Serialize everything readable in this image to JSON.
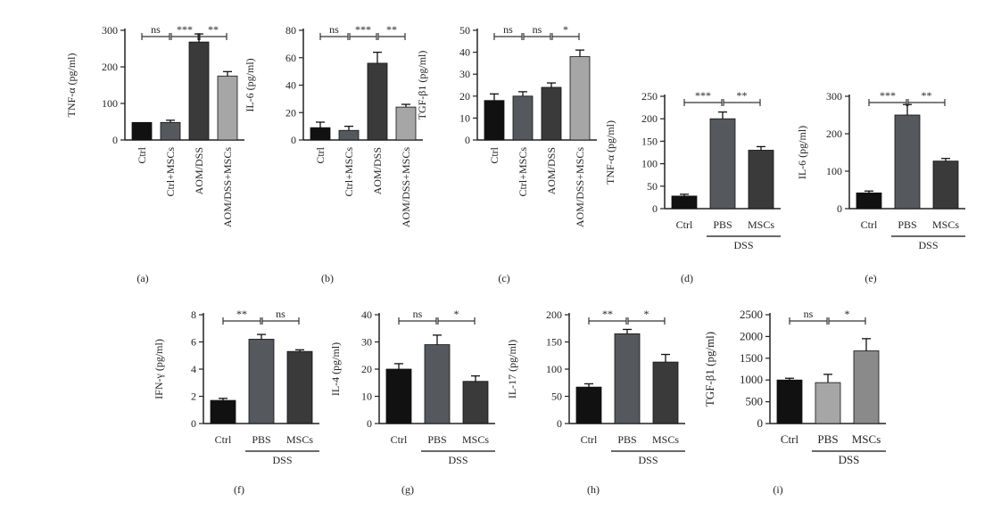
{
  "colors": {
    "black": "#111111",
    "dark": "#3a3a3a",
    "mid": "#55585c",
    "light": "#a6a6a6",
    "axis": "#222222"
  },
  "chart_data": [
    {
      "id": "a",
      "type": "bar",
      "panel_label": "(a)",
      "ylabel": "TNF-α (pg/ml)",
      "ylim": [
        0,
        300
      ],
      "yticks": [
        0,
        100,
        200,
        300
      ],
      "categories": [
        "Ctrl",
        "Ctrl+MSCs",
        "AOM/DSS",
        "AOM/DSS+MSCs"
      ],
      "values": [
        48,
        48,
        268,
        175
      ],
      "errors": [
        0,
        6,
        22,
        12
      ],
      "colors": [
        "#111111",
        "#55585c",
        "#3a3a3a",
        "#a6a6a6"
      ],
      "significance": [
        {
          "from": 0,
          "to": 1,
          "label": "ns"
        },
        {
          "from": 1,
          "to": 2,
          "label": "***"
        },
        {
          "from": 2,
          "to": 3,
          "label": "**"
        }
      ],
      "group": null
    },
    {
      "id": "b",
      "type": "bar",
      "panel_label": "(b)",
      "ylabel": "IL-6 (pg/ml)",
      "ylim": [
        0,
        80
      ],
      "yticks": [
        0,
        20,
        40,
        60,
        80
      ],
      "categories": [
        "Ctrl",
        "Ctrl+MSCs",
        "AOM/DSS",
        "AOM/DSS+MSCs"
      ],
      "values": [
        9,
        7,
        56,
        24
      ],
      "errors": [
        4,
        3,
        8,
        2
      ],
      "colors": [
        "#111111",
        "#55585c",
        "#3a3a3a",
        "#a6a6a6"
      ],
      "significance": [
        {
          "from": 0,
          "to": 1,
          "label": "ns"
        },
        {
          "from": 1,
          "to": 2,
          "label": "***"
        },
        {
          "from": 2,
          "to": 3,
          "label": "**"
        }
      ],
      "group": null
    },
    {
      "id": "c",
      "type": "bar",
      "panel_label": "(c)",
      "ylabel": "TGF-β1 (pg/ml)",
      "ylim": [
        0,
        50
      ],
      "yticks": [
        0,
        10,
        20,
        30,
        40,
        50
      ],
      "categories": [
        "Ctrl",
        "Ctrl+MSCs",
        "AOM/DSS",
        "AOM/DSS+MSCs"
      ],
      "values": [
        18,
        20,
        24,
        38
      ],
      "errors": [
        3,
        2,
        2,
        3
      ],
      "colors": [
        "#111111",
        "#55585c",
        "#3a3a3a",
        "#a6a6a6"
      ],
      "significance": [
        {
          "from": 0,
          "to": 1,
          "label": "ns"
        },
        {
          "from": 1,
          "to": 2,
          "label": "ns"
        },
        {
          "from": 2,
          "to": 3,
          "label": "*"
        }
      ],
      "group": null
    },
    {
      "id": "d",
      "type": "bar",
      "panel_label": "(d)",
      "ylabel": "TNF-α (pg/ml)",
      "ylim": [
        0,
        250
      ],
      "yticks": [
        0,
        50,
        100,
        150,
        200,
        250
      ],
      "categories": [
        "Ctrl",
        "PBS",
        "MSCs"
      ],
      "values": [
        28,
        200,
        130
      ],
      "errors": [
        4,
        15,
        8
      ],
      "colors": [
        "#111111",
        "#55585c",
        "#3a3a3a"
      ],
      "significance": [
        {
          "from": 0,
          "to": 1,
          "label": "***"
        },
        {
          "from": 1,
          "to": 2,
          "label": "**"
        }
      ],
      "group": {
        "label": "DSS",
        "from": 1,
        "to": 2
      }
    },
    {
      "id": "e",
      "type": "bar",
      "panel_label": "(e)",
      "ylabel": "IL-6 (pg/ml)",
      "ylim": [
        0,
        300
      ],
      "yticks": [
        0,
        100,
        200,
        300
      ],
      "categories": [
        "Ctrl",
        "PBS",
        "MSCs"
      ],
      "values": [
        42,
        250,
        127
      ],
      "errors": [
        5,
        28,
        7
      ],
      "colors": [
        "#111111",
        "#55585c",
        "#3a3a3a"
      ],
      "significance": [
        {
          "from": 0,
          "to": 1,
          "label": "***"
        },
        {
          "from": 1,
          "to": 2,
          "label": "**"
        }
      ],
      "group": {
        "label": "DSS",
        "from": 1,
        "to": 2
      }
    },
    {
      "id": "f",
      "type": "bar",
      "panel_label": "(f)",
      "ylabel": "IFN-γ (pg/ml)",
      "ylim": [
        0,
        8
      ],
      "yticks": [
        0,
        2,
        4,
        6,
        8
      ],
      "categories": [
        "Ctrl",
        "PBS",
        "MSCs"
      ],
      "values": [
        1.7,
        6.2,
        5.3
      ],
      "errors": [
        0.15,
        0.35,
        0.12
      ],
      "colors": [
        "#111111",
        "#55585c",
        "#3a3a3a"
      ],
      "significance": [
        {
          "from": 0,
          "to": 1,
          "label": "**"
        },
        {
          "from": 1,
          "to": 2,
          "label": "ns"
        }
      ],
      "group": {
        "label": "DSS",
        "from": 1,
        "to": 2
      }
    },
    {
      "id": "g",
      "type": "bar",
      "panel_label": "(g)",
      "ylabel": "IL-4 (pg/ml)",
      "ylim": [
        0,
        40
      ],
      "yticks": [
        0,
        10,
        20,
        30,
        40
      ],
      "categories": [
        "Ctrl",
        "PBS",
        "MSCs"
      ],
      "values": [
        20,
        29,
        15.5
      ],
      "errors": [
        2,
        3.5,
        2
      ],
      "colors": [
        "#111111",
        "#55585c",
        "#3a3a3a"
      ],
      "significance": [
        {
          "from": 0,
          "to": 1,
          "label": "ns"
        },
        {
          "from": 1,
          "to": 2,
          "label": "*"
        }
      ],
      "group": {
        "label": "DSS",
        "from": 1,
        "to": 2
      }
    },
    {
      "id": "h",
      "type": "bar",
      "panel_label": "(h)",
      "ylabel": "IL-17 (pg/ml)",
      "ylim": [
        0,
        200
      ],
      "yticks": [
        0,
        50,
        100,
        150,
        200
      ],
      "categories": [
        "Ctrl",
        "PBS",
        "MSCs"
      ],
      "values": [
        67,
        165,
        113
      ],
      "errors": [
        6,
        8,
        14
      ],
      "colors": [
        "#111111",
        "#55585c",
        "#3a3a3a"
      ],
      "significance": [
        {
          "from": 0,
          "to": 1,
          "label": "**"
        },
        {
          "from": 1,
          "to": 2,
          "label": "*"
        }
      ],
      "group": {
        "label": "DSS",
        "from": 1,
        "to": 2
      }
    },
    {
      "id": "i",
      "type": "bar",
      "panel_label": "(i)",
      "ylabel": "TGF-β1 (pg/ml)",
      "ylim": [
        0,
        2500
      ],
      "yticks": [
        0,
        500,
        1000,
        1500,
        2000,
        2500
      ],
      "categories": [
        "Ctrl",
        "PBS",
        "MSCs"
      ],
      "values": [
        1000,
        940,
        1670
      ],
      "errors": [
        40,
        190,
        280
      ],
      "colors": [
        "#111111",
        "#a6a6a6",
        "#8a8a8a"
      ],
      "significance": [
        {
          "from": 0,
          "to": 1,
          "label": "ns"
        },
        {
          "from": 1,
          "to": 2,
          "label": "*"
        }
      ],
      "group": {
        "label": "DSS",
        "from": 1,
        "to": 2
      }
    }
  ]
}
